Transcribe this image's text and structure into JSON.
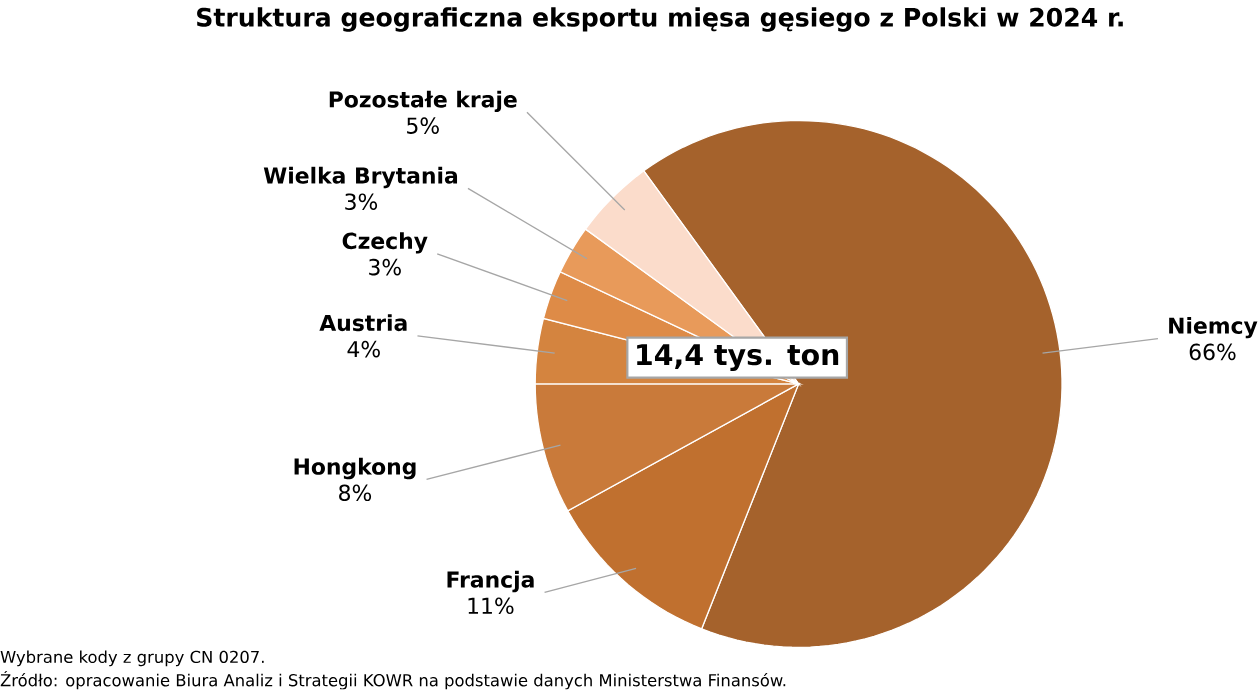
{
  "chart_data": {
    "type": "pie",
    "title": "Struktura geograficzna eksportu mięsa gęsiego z Polski w 2024 r.",
    "categories": [
      "Niemcy",
      "Francja",
      "Hongkong",
      "Austria",
      "Czechy",
      "Wielka Brytania",
      "Pozostałe kraje"
    ],
    "values": [
      66,
      11,
      8,
      4,
      3,
      3,
      5
    ],
    "value_labels": [
      "66%",
      "11%",
      "8%",
      "4%",
      "3%",
      "3%",
      "5%"
    ],
    "colors": [
      "#a5622c",
      "#c0702f",
      "#c97a3a",
      "#d4843f",
      "#de8b47",
      "#e89a5a",
      "#fbdccb"
    ],
    "annotations": [
      "14,4 tys. ton",
      "Wybrane kody z grupy CN 0207.",
      "Źródło: opracowanie Biura Analiz i Strategii KOWR na podstawie danych Ministerstwa Finansów."
    ]
  }
}
